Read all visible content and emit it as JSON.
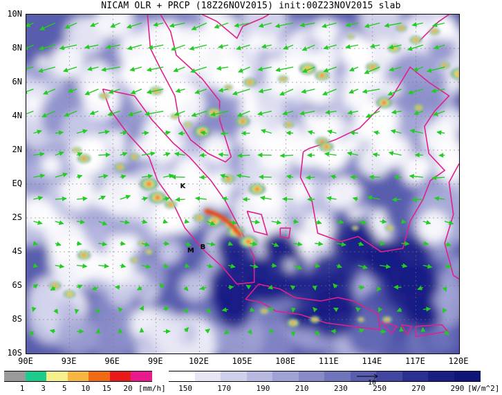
{
  "title": "NICAM OLR + PRCP (18Z26NOV2015) init:00Z23NOV2015 slab",
  "lat_labels": [
    "10N",
    "8N",
    "6N",
    "4N",
    "2N",
    "EQ",
    "2S",
    "4S",
    "6S",
    "8S",
    "10S"
  ],
  "lon_labels": [
    "90E",
    "93E",
    "96E",
    "99E",
    "102E",
    "105E",
    "108E",
    "111E",
    "114E",
    "117E",
    "120E"
  ],
  "markers": [
    {
      "label": "K",
      "lon": 100.9,
      "lat": -0.2
    },
    {
      "label": "M",
      "lon": 101.4,
      "lat": -4.0
    },
    {
      "label": "B",
      "lon": 102.3,
      "lat": -3.8
    }
  ],
  "precip_colorbar": {
    "unit": "[mm/h]",
    "labels": [
      "1",
      "3",
      "5",
      "10",
      "15",
      "20"
    ],
    "colors": [
      "#9a9a9a",
      "#1bcc8c",
      "#f5f08a",
      "#f7b541",
      "#f06a14",
      "#e81a1a",
      "#e81a8c"
    ]
  },
  "olr_colorbar": {
    "unit": "[W/m^2]",
    "labels": [
      "150",
      "170",
      "190",
      "210",
      "230",
      "250",
      "270",
      "290"
    ],
    "colors": [
      "#ffffff",
      "#e6e6f4",
      "#cfd0ea",
      "#b8b9e0",
      "#a0a2d4",
      "#888bc8",
      "#7074bb",
      "#585dae",
      "#4146a0",
      "#2b3192",
      "#1a1f86",
      "#10157a"
    ]
  },
  "vector_ref_label": "10"
}
